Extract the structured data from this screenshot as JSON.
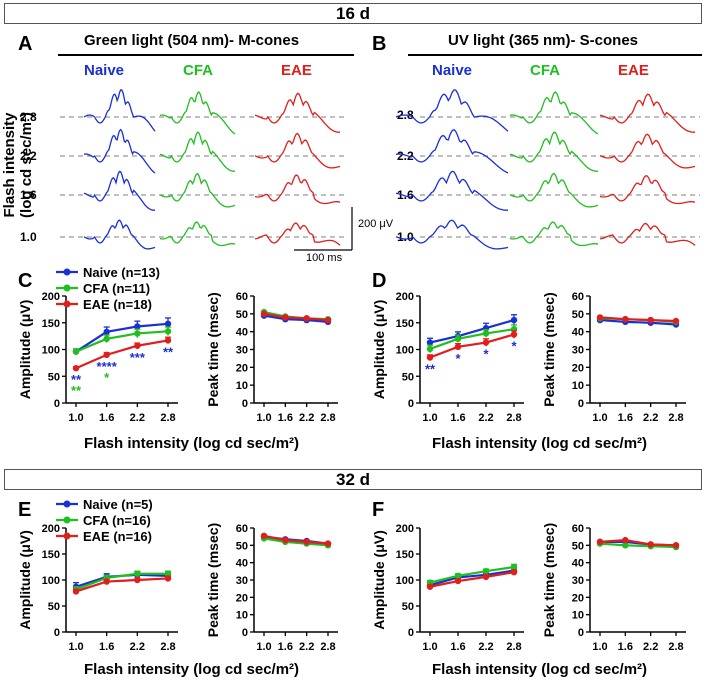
{
  "sections": [
    {
      "title": "16 d"
    },
    {
      "title": "32 d"
    }
  ],
  "colors": {
    "naive": "#1a2fd6",
    "cfa": "#1fbf1f",
    "eae": "#e01e1e",
    "ref_line": "#999999"
  },
  "erg": {
    "panels": [
      {
        "label": "A",
        "title": "Green light (504 nm)- M-cones"
      },
      {
        "label": "B",
        "title": "UV light (365 nm)- S-cones"
      }
    ],
    "groups": [
      "Naive",
      "CFA",
      "EAE"
    ],
    "intensities": [
      "2.8",
      "2.2",
      "1.6",
      "1.0"
    ],
    "y_axis_label_line1": "Flash intensity",
    "y_axis_label_line2": "(log cd sec/m²)",
    "scale_bar_amplitude": "200 μV",
    "scale_bar_time": "100 ms"
  },
  "chart_data": [
    {
      "type": "line",
      "panel": "C",
      "title": "Amplitude (μV)",
      "xlabel": "",
      "ylabel": "Amplitude (μV)",
      "categories": [
        "1.0",
        "1.6",
        "2.2",
        "2.8"
      ],
      "ylim": [
        0,
        200
      ],
      "yticks": [
        "0",
        "50",
        "100",
        "150",
        "200"
      ],
      "legend": [
        "Naive (n=13)",
        "CFA (n=11)",
        "EAE (n=18)"
      ],
      "series": [
        {
          "name": "Naive",
          "values": [
            96,
            133,
            143,
            148
          ],
          "err": [
            5,
            9,
            10,
            11
          ]
        },
        {
          "name": "CFA",
          "values": [
            96,
            120,
            130,
            134
          ],
          "err": [
            5,
            7,
            8,
            8
          ]
        },
        {
          "name": "EAE",
          "values": [
            65,
            90,
            107,
            117
          ],
          "err": [
            3,
            4,
            5,
            6
          ]
        }
      ],
      "stars_naive": [
        "**",
        "****",
        "***",
        "**"
      ],
      "stars_cfa": [
        "**",
        "*",
        "",
        ""
      ]
    },
    {
      "type": "line",
      "panel": "C2",
      "ylabel": "Peak time (msec)",
      "categories": [
        "1.0",
        "1.6",
        "2.2",
        "2.8"
      ],
      "ylim": [
        0,
        60
      ],
      "yticks": [
        "0",
        "10",
        "20",
        "30",
        "40",
        "50",
        "60"
      ],
      "series": [
        {
          "name": "Naive",
          "values": [
            49,
            47,
            46.5,
            45.5
          ]
        },
        {
          "name": "CFA",
          "values": [
            51,
            48.5,
            47.5,
            47
          ]
        },
        {
          "name": "EAE",
          "values": [
            50,
            48,
            47.5,
            46.5
          ]
        }
      ]
    },
    {
      "type": "line",
      "panel": "D",
      "ylabel": "Amplitude (μV)",
      "categories": [
        "1.0",
        "1.6",
        "2.2",
        "2.8"
      ],
      "ylim": [
        0,
        200
      ],
      "yticks": [
        "0",
        "50",
        "100",
        "150",
        "200"
      ],
      "series": [
        {
          "name": "Naive",
          "values": [
            113,
            125,
            140,
            155
          ],
          "err": [
            8,
            8,
            9,
            10
          ]
        },
        {
          "name": "CFA",
          "values": [
            101,
            120,
            130,
            138
          ],
          "err": [
            7,
            7,
            7,
            8
          ]
        },
        {
          "name": "EAE",
          "values": [
            85,
            105,
            113,
            128
          ],
          "err": [
            5,
            6,
            7,
            7
          ]
        }
      ],
      "stars_naive": [
        "**",
        "*",
        "*",
        "*"
      ],
      "stars_cfa": [
        "",
        "",
        "",
        ""
      ]
    },
    {
      "type": "line",
      "panel": "D2",
      "ylabel": "Peak time (msec)",
      "categories": [
        "1.0",
        "1.6",
        "2.2",
        "2.8"
      ],
      "ylim": [
        0,
        60
      ],
      "yticks": [
        "0",
        "10",
        "20",
        "30",
        "40",
        "50",
        "60"
      ],
      "series": [
        {
          "name": "Naive",
          "values": [
            46.5,
            45.5,
            45,
            44
          ]
        },
        {
          "name": "CFA",
          "values": [
            47.5,
            47,
            46.5,
            45.5
          ]
        },
        {
          "name": "EAE",
          "values": [
            48,
            47,
            46.5,
            46
          ]
        }
      ]
    },
    {
      "type": "line",
      "panel": "E",
      "ylabel": "Amplitude (μV)",
      "categories": [
        "1.0",
        "1.6",
        "2.2",
        "2.8"
      ],
      "ylim": [
        0,
        200
      ],
      "yticks": [
        "0",
        "50",
        "100",
        "150",
        "200"
      ],
      "legend": [
        "Naive (n=5)",
        "CFA (n=16)",
        "EAE (n=16)"
      ],
      "series": [
        {
          "name": "Naive",
          "values": [
            87,
            106,
            110,
            108
          ],
          "err": [
            8,
            6,
            6,
            6
          ]
        },
        {
          "name": "CFA",
          "values": [
            82,
            104,
            112,
            112
          ],
          "err": [
            5,
            5,
            5,
            5
          ]
        },
        {
          "name": "EAE",
          "values": [
            78,
            97,
            100,
            103
          ],
          "err": [
            4,
            4,
            4,
            4
          ]
        }
      ]
    },
    {
      "type": "line",
      "panel": "E2",
      "ylabel": "Peak time (msec)",
      "categories": [
        "1.0",
        "1.6",
        "2.2",
        "2.8"
      ],
      "ylim": [
        0,
        60
      ],
      "yticks": [
        "0",
        "10",
        "20",
        "30",
        "40",
        "50",
        "60"
      ],
      "series": [
        {
          "name": "Naive",
          "values": [
            55,
            53.5,
            52.5,
            51
          ]
        },
        {
          "name": "CFA",
          "values": [
            54,
            52,
            51,
            50
          ]
        },
        {
          "name": "EAE",
          "values": [
            55.5,
            53,
            52,
            51
          ]
        }
      ]
    },
    {
      "type": "line",
      "panel": "F",
      "ylabel": "Amplitude (μV)",
      "categories": [
        "1.0",
        "1.6",
        "2.2",
        "2.8"
      ],
      "ylim": [
        0,
        200
      ],
      "yticks": [
        "0",
        "50",
        "100",
        "150",
        "200"
      ],
      "series": [
        {
          "name": "Naive",
          "values": [
            90,
            105,
            110,
            118
          ],
          "err": [
            4,
            4,
            4,
            5
          ]
        },
        {
          "name": "CFA",
          "values": [
            95,
            108,
            117,
            125
          ],
          "err": [
            4,
            4,
            4,
            5
          ]
        },
        {
          "name": "EAE",
          "values": [
            87,
            98,
            106,
            115
          ],
          "err": [
            3,
            3,
            4,
            4
          ]
        }
      ]
    },
    {
      "type": "line",
      "panel": "F2",
      "ylabel": "Peak time (msec)",
      "categories": [
        "1.0",
        "1.6",
        "2.2",
        "2.8"
      ],
      "ylim": [
        0,
        60
      ],
      "yticks": [
        "0",
        "10",
        "20",
        "30",
        "40",
        "50",
        "60"
      ],
      "series": [
        {
          "name": "Naive",
          "values": [
            52,
            52,
            50.5,
            50
          ]
        },
        {
          "name": "CFA",
          "values": [
            51,
            50,
            49.5,
            49
          ]
        },
        {
          "name": "EAE",
          "values": [
            52,
            53,
            50.5,
            50
          ]
        }
      ]
    }
  ],
  "x_axis_title": "Flash intensity (log cd sec/m²)"
}
